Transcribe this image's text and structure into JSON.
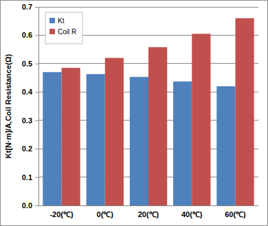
{
  "chart_data": {
    "type": "bar",
    "y_label": "Kt[N·m]/A,Coil Resistance(Ω)",
    "categories": [
      "-20(℃)",
      "0(℃)",
      "20(℃)",
      "40(℃)",
      "60(℃)"
    ],
    "series": [
      {
        "name": "Kt",
        "color": "#4f81bd",
        "values": [
          0.47,
          0.463,
          0.453,
          0.437,
          0.42
        ]
      },
      {
        "name": "Coil R",
        "color": "#c0504d",
        "values": [
          0.485,
          0.52,
          0.558,
          0.605,
          0.66
        ]
      }
    ],
    "ylim": [
      0,
      0.7
    ],
    "yticks": [
      {
        "value": 0,
        "label": "0.0"
      },
      0.1,
      0.2,
      0.3,
      0.4,
      0.5,
      0.6,
      0.7
    ],
    "grid": true,
    "legend": "top-left"
  }
}
